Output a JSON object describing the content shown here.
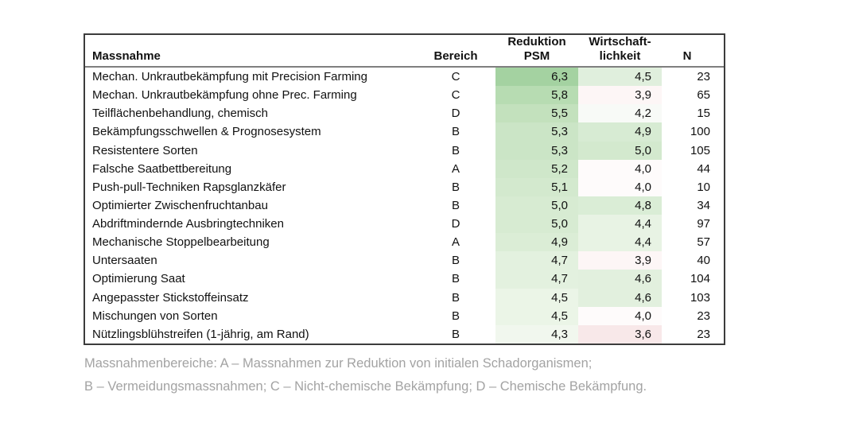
{
  "page": {
    "background": "#ffffff"
  },
  "colors": {
    "table_border": "#3c3c3c",
    "header_rule": "#7f7f7f",
    "text": "#111111",
    "footnote_text": "#a3a3a3"
  },
  "table": {
    "headers": {
      "massnahme": "Massnahme",
      "bereich": "Bereich",
      "reduktion_line1": "Reduktion",
      "reduktion_line2": "PSM",
      "wirtschaft_line1": "Wirtschaft-",
      "wirtschaft_line2": "lichkeit",
      "n": "N"
    },
    "rows": [
      {
        "massnahme": "Mechan. Unkrautbekämpfung mit Precision Farming",
        "bereich": "C",
        "reduktion_psm": "6,3",
        "reduktion_psm_color": "#a4d2a1",
        "wirtschaftlichkeit": "4,5",
        "wirtschaftlichkeit_color": "#e0efdd",
        "n": "23"
      },
      {
        "massnahme": "Mechan. Unkrautbekämpfung ohne Prec. Farming",
        "bereich": "C",
        "reduktion_psm": "5,8",
        "reduktion_psm_color": "#b7dcb2",
        "wirtschaftlichkeit": "3,9",
        "wirtschaftlichkeit_color": "#fdf6f6",
        "n": "65"
      },
      {
        "massnahme": "Teilflächenbehandlung, chemisch",
        "bereich": "D",
        "reduktion_psm": "5,5",
        "reduktion_psm_color": "#c3e1bd",
        "wirtschaftlichkeit": "4,2",
        "wirtschaftlichkeit_color": "#f8faf7",
        "n": "15"
      },
      {
        "massnahme": "Bekämpfungsschwellen & Prognosesystem",
        "bereich": "B",
        "reduktion_psm": "5,3",
        "reduktion_psm_color": "#cbe5c6",
        "wirtschaftlichkeit": "4,9",
        "wirtschaftlichkeit_color": "#d7ebd3",
        "n": "100"
      },
      {
        "massnahme": "Resistentere Sorten",
        "bereich": "B",
        "reduktion_psm": "5,3",
        "reduktion_psm_color": "#cbe5c6",
        "wirtschaftlichkeit": "5,0",
        "wirtschaftlichkeit_color": "#d3e9ce",
        "n": "105"
      },
      {
        "massnahme": "Falsche Saatbettbereitung",
        "bereich": "A",
        "reduktion_psm": "5,2",
        "reduktion_psm_color": "#cfe7ca",
        "wirtschaftlichkeit": "4,0",
        "wirtschaftlichkeit_color": "#fefbfb",
        "n": "44"
      },
      {
        "massnahme": "Push-pull-Techniken Rapsglanzkäfer",
        "bereich": "B",
        "reduktion_psm": "5,1",
        "reduktion_psm_color": "#d3e9ce",
        "wirtschaftlichkeit": "4,0",
        "wirtschaftlichkeit_color": "#fefbfb",
        "n": "10"
      },
      {
        "massnahme": "Optimierter Zwischenfruchtanbau",
        "bereich": "B",
        "reduktion_psm": "5,0",
        "reduktion_psm_color": "#d7ebd2",
        "wirtschaftlichkeit": "4,8",
        "wirtschaftlichkeit_color": "#daedd6",
        "n": "34"
      },
      {
        "massnahme": "Abdriftmindernde Ausbringtechniken",
        "bereich": "D",
        "reduktion_psm": "5,0",
        "reduktion_psm_color": "#d7ebd2",
        "wirtschaftlichkeit": "4,4",
        "wirtschaftlichkeit_color": "#e8f3e4",
        "n": "97"
      },
      {
        "massnahme": "Mechanische Stoppelbearbeitung",
        "bereich": "A",
        "reduktion_psm": "4,9",
        "reduktion_psm_color": "#dbedd6",
        "wirtschaftlichkeit": "4,4",
        "wirtschaftlichkeit_color": "#e8f3e4",
        "n": "57"
      },
      {
        "massnahme": "Untersaaten",
        "bereich": "B",
        "reduktion_psm": "4,7",
        "reduktion_psm_color": "#e3f1df",
        "wirtschaftlichkeit": "3,9",
        "wirtschaftlichkeit_color": "#fdf6f6",
        "n": "40"
      },
      {
        "massnahme": "Optimierung Saat",
        "bereich": "B",
        "reduktion_psm": "4,7",
        "reduktion_psm_color": "#e3f1df",
        "wirtschaftlichkeit": "4,6",
        "wirtschaftlichkeit_color": "#e2f0de",
        "n": "104"
      },
      {
        "massnahme": "Angepasster Stickstoffeinsatz",
        "bereich": "B",
        "reduktion_psm": "4,5",
        "reduktion_psm_color": "#ebf5e7",
        "wirtschaftlichkeit": "4,6",
        "wirtschaftlichkeit_color": "#e2f0de",
        "n": "103"
      },
      {
        "massnahme": "Mischungen von Sorten",
        "bereich": "B",
        "reduktion_psm": "4,5",
        "reduktion_psm_color": "#ebf5e7",
        "wirtschaftlichkeit": "4,0",
        "wirtschaftlichkeit_color": "#fefbfb",
        "n": "23"
      },
      {
        "massnahme": "Nützlingsblühstreifen (1-jährig, am Rand)",
        "bereich": "B",
        "reduktion_psm": "4,3",
        "reduktion_psm_color": "#f1f7ee",
        "wirtschaftlichkeit": "3,6",
        "wirtschaftlichkeit_color": "#f8e8e9",
        "n": "23"
      }
    ]
  },
  "footnote": {
    "line1": "Massnahmenbereiche: A – Massnahmen zur Reduktion von initialen Schadorganismen;",
    "line2": "B – Vermeidungsmassnahmen; C – Nicht-chemische Bekämpfung; D – Chemische Bekämpfung."
  }
}
